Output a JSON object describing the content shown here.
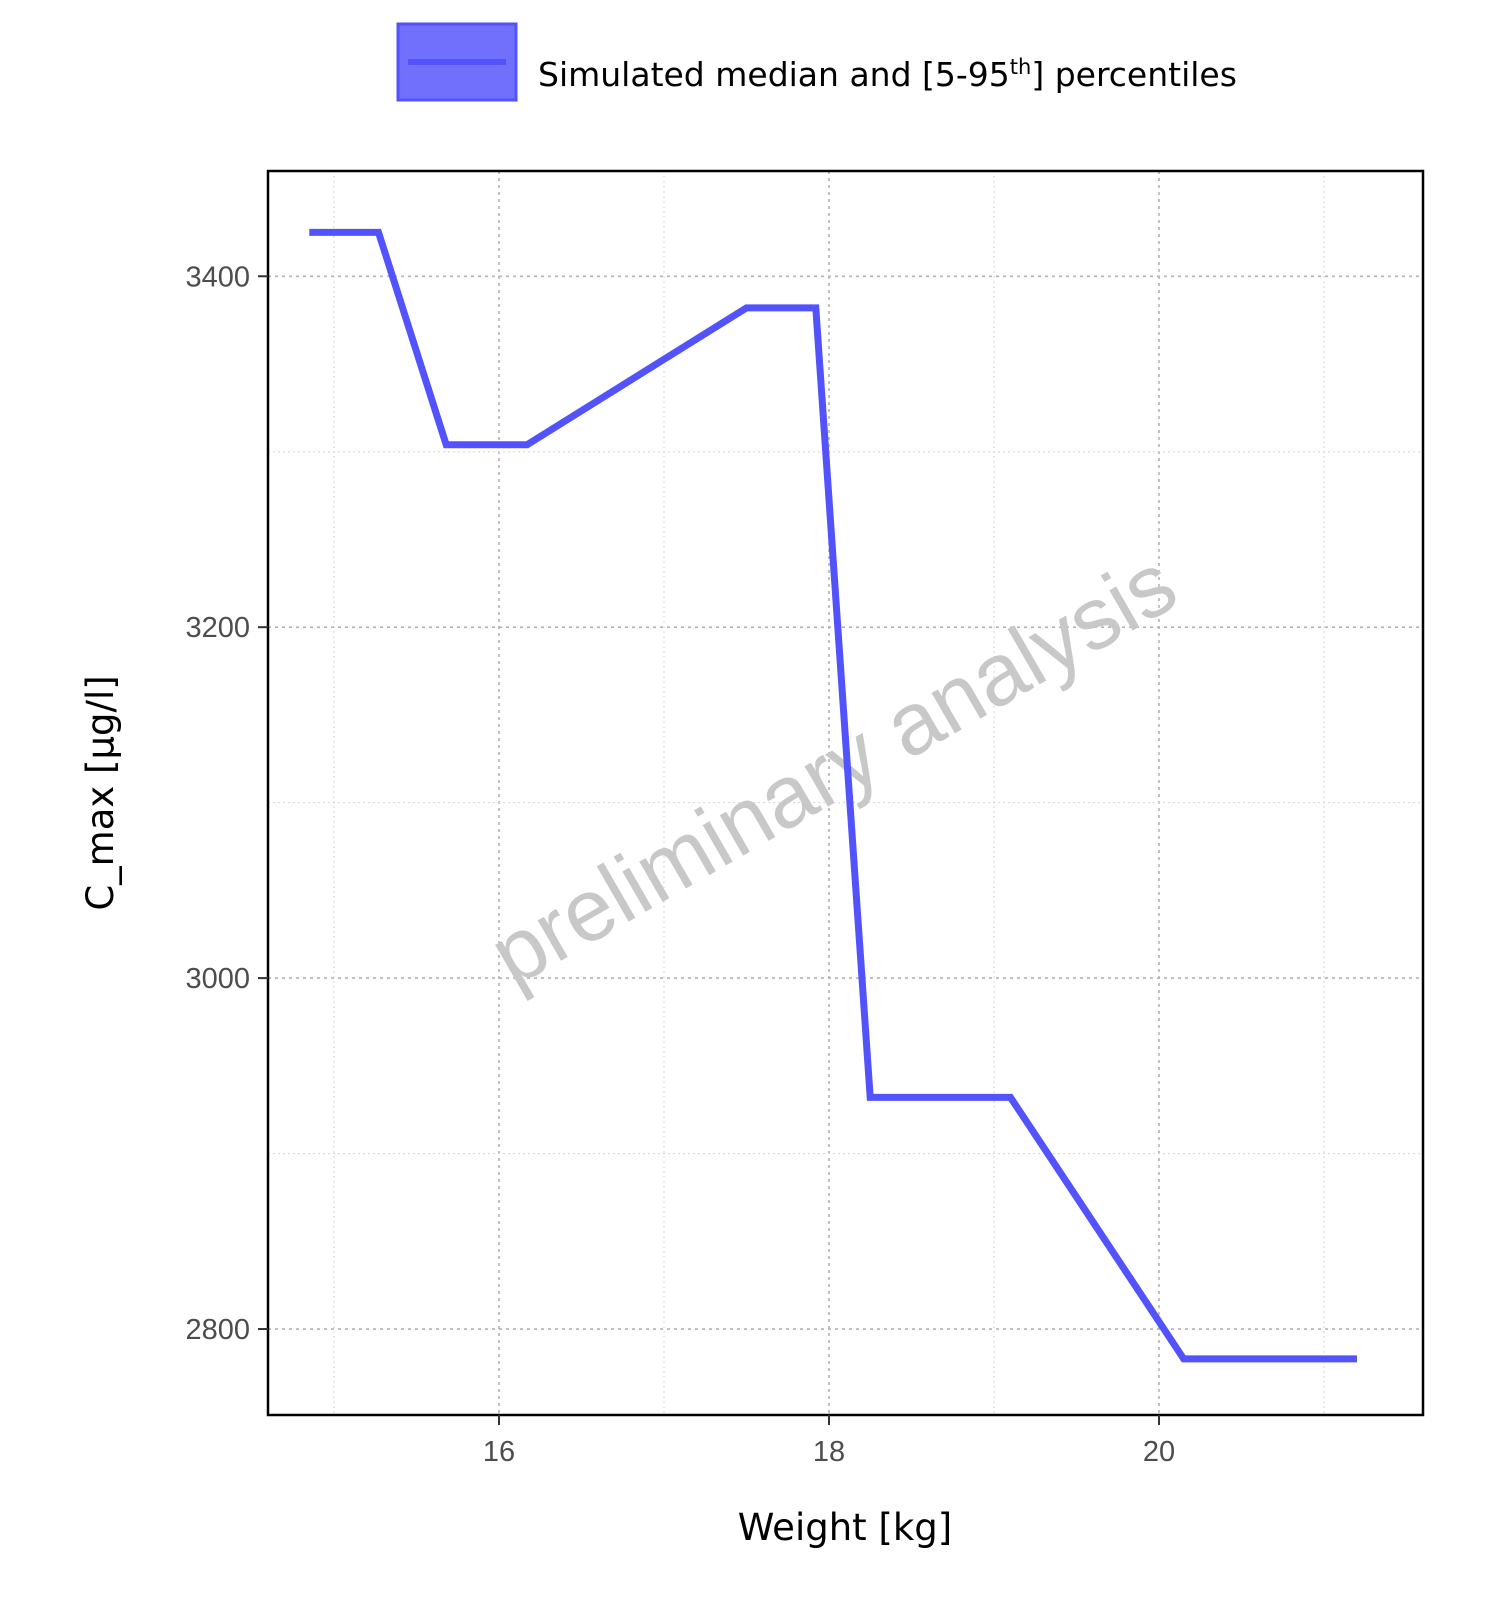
{
  "chart_data": {
    "type": "line",
    "title": "",
    "xlabel": "Weight [kg]",
    "ylabel": "C_max [µg/l]",
    "xlim": [
      14.6,
      21.6
    ],
    "ylim": [
      2751,
      3460
    ],
    "x_ticks": [
      16,
      18,
      20
    ],
    "y_ticks": [
      2800,
      3000,
      3200,
      3400
    ],
    "x_tick_labels": [
      "16",
      "18",
      "20"
    ],
    "y_tick_labels": [
      "2800",
      "3000",
      "3200",
      "3400"
    ],
    "grid": true,
    "legend_position": "top",
    "series": [
      {
        "name": "Simulated median and [5-95th] percentiles",
        "color": "#5353fd",
        "band_color": "#7070fd",
        "x": [
          14.85,
          15.27,
          15.68,
          16.17,
          17.5,
          17.92,
          18.25,
          19.1,
          20.15,
          21.2
        ],
        "y": [
          3425,
          3425,
          3304,
          3304,
          3382,
          3382,
          2932,
          2932,
          2783,
          2783
        ]
      }
    ],
    "legend": {
      "text_main": "Simulated median and [5-95",
      "text_sup": "th",
      "text_end": "] percentiles"
    },
    "watermark": "preliminary analysis"
  }
}
